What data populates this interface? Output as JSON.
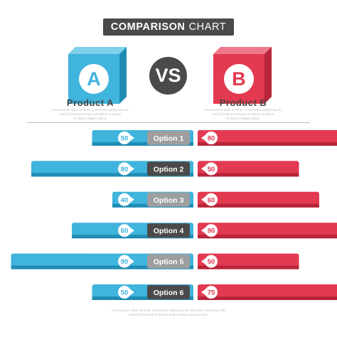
{
  "title": {
    "bold": "COMPARISON",
    "light": "CHART"
  },
  "vs_label": "VS",
  "product_a": {
    "letter": "A",
    "name": "Product A",
    "color": "#3fb4dc",
    "description": [
      "Lorem ipsum dolor sit amet, consectetur adipiscing elit.",
      "Sed do eiusmod tempor incididunt ut labore",
      "et dolore magna aliqua."
    ]
  },
  "product_b": {
    "letter": "B",
    "name": "Product B",
    "color": "#e23a51",
    "description": [
      "Lorem ipsum dolor sit amet, consectetur adipiscing elit.",
      "Sed do eiusmod tempor incididunt ut labore",
      "et dolore magna aliqua."
    ]
  },
  "footer_text": [
    "Lorem ipsum dolor sit amet, consectetur adipiscing elit, sed diam nonummy nibh",
    "euismod tincidunt ut laoreet dolore magna aliquam erat."
  ],
  "colors": {
    "blue": "#3fb4dc",
    "blue_dark": "#1f8cb4",
    "red": "#e23a51",
    "red_dark": "#b8243a",
    "dark_gray": "#4a4a4a",
    "light_gray": "#9e9e9e"
  },
  "chart_data": {
    "type": "bar",
    "categories": [
      "Option 1",
      "Option 2",
      "Option 3",
      "Option 4",
      "Option 5",
      "Option 6"
    ],
    "series": [
      {
        "name": "Product A",
        "values": [
          50,
          80,
          40,
          60,
          90,
          50
        ]
      },
      {
        "name": "Product B",
        "values": [
          80,
          50,
          60,
          90,
          50,
          75
        ]
      }
    ],
    "orientation": "horizontal-butterfly"
  }
}
